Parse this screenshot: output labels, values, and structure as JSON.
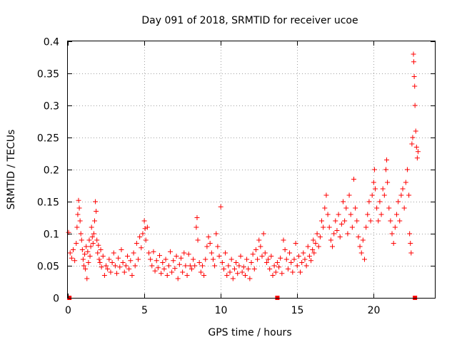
{
  "chart_data": {
    "type": "scatter",
    "title": "Day 091 of 2018, SRMTID for receiver ucoe",
    "xlabel": "GPS time / hours",
    "ylabel": "SRMTID / TECUs",
    "xlim": [
      0,
      24
    ],
    "ylim": [
      0,
      0.4
    ],
    "grid": true,
    "marker": "plus",
    "series_color": "#ff0000",
    "xticks": [
      {
        "value": 0,
        "label": "0"
      },
      {
        "value": 5,
        "label": "5"
      },
      {
        "value": 10,
        "label": "10"
      },
      {
        "value": 15,
        "label": "15"
      },
      {
        "value": 20,
        "label": "20"
      }
    ],
    "yticks": [
      {
        "value": 0,
        "label": "0"
      },
      {
        "value": 0.05,
        "label": "0.05"
      },
      {
        "value": 0.1,
        "label": "0.1"
      },
      {
        "value": 0.15,
        "label": "0.15"
      },
      {
        "value": 0.2,
        "label": "0.2"
      },
      {
        "value": 0.25,
        "label": "0.25"
      },
      {
        "value": 0.3,
        "label": "0.3"
      },
      {
        "value": 0.35,
        "label": "0.35"
      },
      {
        "value": 0.4,
        "label": "0.4"
      }
    ],
    "zero_markers_x": [
      0.1,
      13.7,
      22.7
    ],
    "series": [
      {
        "name": "SRMTID",
        "points": [
          [
            0.05,
            0.102
          ],
          [
            0.15,
            0.07
          ],
          [
            0.25,
            0.062
          ],
          [
            0.35,
            0.075
          ],
          [
            0.45,
            0.058
          ],
          [
            0.55,
            0.085
          ],
          [
            0.6,
            0.11
          ],
          [
            0.65,
            0.13
          ],
          [
            0.7,
            0.152
          ],
          [
            0.75,
            0.14
          ],
          [
            0.8,
            0.12
          ],
          [
            0.85,
            0.1
          ],
          [
            0.9,
            0.09
          ],
          [
            0.95,
            0.075
          ],
          [
            1.0,
            0.06
          ],
          [
            1.05,
            0.05
          ],
          [
            1.1,
            0.068
          ],
          [
            1.15,
            0.045
          ],
          [
            1.2,
            0.08
          ],
          [
            1.25,
            0.03
          ],
          [
            1.3,
            0.072
          ],
          [
            1.35,
            0.055
          ],
          [
            1.4,
            0.09
          ],
          [
            1.45,
            0.065
          ],
          [
            1.5,
            0.08
          ],
          [
            1.55,
            0.11
          ],
          [
            1.6,
            0.095
          ],
          [
            1.65,
            0.085
          ],
          [
            1.7,
            0.1
          ],
          [
            1.75,
            0.12
          ],
          [
            1.8,
            0.15
          ],
          [
            1.85,
            0.135
          ],
          [
            1.9,
            0.09
          ],
          [
            1.95,
            0.07
          ],
          [
            2.0,
            0.082
          ],
          [
            2.05,
            0.06
          ],
          [
            2.1,
            0.055
          ],
          [
            2.15,
            0.075
          ],
          [
            2.2,
            0.048
          ],
          [
            2.3,
            0.065
          ],
          [
            2.4,
            0.035
          ],
          [
            2.5,
            0.05
          ],
          [
            2.6,
            0.045
          ],
          [
            2.7,
            0.06
          ],
          [
            2.8,
            0.04
          ],
          [
            2.9,
            0.055
          ],
          [
            3.0,
            0.07
          ],
          [
            3.1,
            0.05
          ],
          [
            3.2,
            0.038
          ],
          [
            3.3,
            0.062
          ],
          [
            3.4,
            0.048
          ],
          [
            3.5,
            0.075
          ],
          [
            3.6,
            0.055
          ],
          [
            3.7,
            0.04
          ],
          [
            3.8,
            0.05
          ],
          [
            3.9,
            0.065
          ],
          [
            4.0,
            0.045
          ],
          [
            4.1,
            0.058
          ],
          [
            4.2,
            0.035
          ],
          [
            4.3,
            0.07
          ],
          [
            4.4,
            0.05
          ],
          [
            4.5,
            0.085
          ],
          [
            4.6,
            0.06
          ],
          [
            4.7,
            0.095
          ],
          [
            4.8,
            0.078
          ],
          [
            4.9,
            0.1
          ],
          [
            5.0,
            0.12
          ],
          [
            5.05,
            0.108
          ],
          [
            5.1,
            0.09
          ],
          [
            5.2,
            0.11
          ],
          [
            5.3,
            0.07
          ],
          [
            5.4,
            0.06
          ],
          [
            5.5,
            0.05
          ],
          [
            5.6,
            0.072
          ],
          [
            5.7,
            0.042
          ],
          [
            5.8,
            0.058
          ],
          [
            5.9,
            0.047
          ],
          [
            6.0,
            0.066
          ],
          [
            6.1,
            0.038
          ],
          [
            6.2,
            0.055
          ],
          [
            6.3,
            0.045
          ],
          [
            6.4,
            0.06
          ],
          [
            6.5,
            0.035
          ],
          [
            6.6,
            0.05
          ],
          [
            6.7,
            0.072
          ],
          [
            6.8,
            0.04
          ],
          [
            6.9,
            0.058
          ],
          [
            7.0,
            0.046
          ],
          [
            7.1,
            0.065
          ],
          [
            7.2,
            0.03
          ],
          [
            7.3,
            0.052
          ],
          [
            7.4,
            0.062
          ],
          [
            7.5,
            0.04
          ],
          [
            7.6,
            0.07
          ],
          [
            7.7,
            0.05
          ],
          [
            7.8,
            0.035
          ],
          [
            7.9,
            0.068
          ],
          [
            8.0,
            0.05
          ],
          [
            8.1,
            0.045
          ],
          [
            8.2,
            0.06
          ],
          [
            8.3,
            0.05
          ],
          [
            8.4,
            0.11
          ],
          [
            8.45,
            0.125
          ],
          [
            8.5,
            0.09
          ],
          [
            8.6,
            0.055
          ],
          [
            8.7,
            0.04
          ],
          [
            8.8,
            0.05
          ],
          [
            8.9,
            0.035
          ],
          [
            9.0,
            0.06
          ],
          [
            9.1,
            0.08
          ],
          [
            9.2,
            0.095
          ],
          [
            9.3,
            0.085
          ],
          [
            9.4,
            0.07
          ],
          [
            9.5,
            0.06
          ],
          [
            9.6,
            0.05
          ],
          [
            9.7,
            0.1
          ],
          [
            9.8,
            0.08
          ],
          [
            9.9,
            0.065
          ],
          [
            10.0,
            0.142
          ],
          [
            10.1,
            0.055
          ],
          [
            10.2,
            0.045
          ],
          [
            10.3,
            0.07
          ],
          [
            10.4,
            0.035
          ],
          [
            10.5,
            0.05
          ],
          [
            10.6,
            0.04
          ],
          [
            10.7,
            0.06
          ],
          [
            10.8,
            0.03
          ],
          [
            10.9,
            0.045
          ],
          [
            11.0,
            0.055
          ],
          [
            11.1,
            0.038
          ],
          [
            11.2,
            0.05
          ],
          [
            11.3,
            0.065
          ],
          [
            11.4,
            0.04
          ],
          [
            11.5,
            0.048
          ],
          [
            11.6,
            0.035
          ],
          [
            11.7,
            0.06
          ],
          [
            11.8,
            0.045
          ],
          [
            11.9,
            0.03
          ],
          [
            12.0,
            0.055
          ],
          [
            12.1,
            0.068
          ],
          [
            12.2,
            0.045
          ],
          [
            12.3,
            0.075
          ],
          [
            12.4,
            0.06
          ],
          [
            12.5,
            0.09
          ],
          [
            12.6,
            0.08
          ],
          [
            12.7,
            0.065
          ],
          [
            12.8,
            0.1
          ],
          [
            12.9,
            0.07
          ],
          [
            13.0,
            0.055
          ],
          [
            13.1,
            0.06
          ],
          [
            13.2,
            0.045
          ],
          [
            13.3,
            0.065
          ],
          [
            13.4,
            0.035
          ],
          [
            13.5,
            0.05
          ],
          [
            13.6,
            0.04
          ],
          [
            13.7,
            0.055
          ],
          [
            13.8,
            0.048
          ],
          [
            13.9,
            0.062
          ],
          [
            14.0,
            0.038
          ],
          [
            14.1,
            0.09
          ],
          [
            14.2,
            0.075
          ],
          [
            14.3,
            0.06
          ],
          [
            14.4,
            0.045
          ],
          [
            14.5,
            0.07
          ],
          [
            14.6,
            0.055
          ],
          [
            14.7,
            0.04
          ],
          [
            14.8,
            0.06
          ],
          [
            14.9,
            0.085
          ],
          [
            15.0,
            0.05
          ],
          [
            15.1,
            0.065
          ],
          [
            15.2,
            0.04
          ],
          [
            15.3,
            0.055
          ],
          [
            15.4,
            0.07
          ],
          [
            15.5,
            0.06
          ],
          [
            15.6,
            0.05
          ],
          [
            15.7,
            0.08
          ],
          [
            15.8,
            0.065
          ],
          [
            15.9,
            0.058
          ],
          [
            16.0,
            0.075
          ],
          [
            16.05,
            0.09
          ],
          [
            16.1,
            0.07
          ],
          [
            16.2,
            0.085
          ],
          [
            16.3,
            0.1
          ],
          [
            16.4,
            0.08
          ],
          [
            16.5,
            0.095
          ],
          [
            16.6,
            0.12
          ],
          [
            16.7,
            0.11
          ],
          [
            16.8,
            0.14
          ],
          [
            16.9,
            0.16
          ],
          [
            17.0,
            0.13
          ],
          [
            17.1,
            0.11
          ],
          [
            17.2,
            0.09
          ],
          [
            17.3,
            0.08
          ],
          [
            17.4,
            0.1
          ],
          [
            17.5,
            0.12
          ],
          [
            17.6,
            0.105
          ],
          [
            17.7,
            0.13
          ],
          [
            17.8,
            0.095
          ],
          [
            17.9,
            0.115
          ],
          [
            18.0,
            0.15
          ],
          [
            18.1,
            0.12
          ],
          [
            18.2,
            0.14
          ],
          [
            18.3,
            0.1
          ],
          [
            18.4,
            0.16
          ],
          [
            18.5,
            0.13
          ],
          [
            18.6,
            0.11
          ],
          [
            18.7,
            0.185
          ],
          [
            18.8,
            0.14
          ],
          [
            18.9,
            0.12
          ],
          [
            19.0,
            0.095
          ],
          [
            19.1,
            0.08
          ],
          [
            19.2,
            0.07
          ],
          [
            19.3,
            0.09
          ],
          [
            19.4,
            0.06
          ],
          [
            19.5,
            0.11
          ],
          [
            19.6,
            0.13
          ],
          [
            19.7,
            0.15
          ],
          [
            19.8,
            0.12
          ],
          [
            19.9,
            0.16
          ],
          [
            20.0,
            0.18
          ],
          [
            20.05,
            0.2
          ],
          [
            20.1,
            0.17
          ],
          [
            20.2,
            0.14
          ],
          [
            20.3,
            0.12
          ],
          [
            20.4,
            0.15
          ],
          [
            20.5,
            0.13
          ],
          [
            20.6,
            0.17
          ],
          [
            20.7,
            0.16
          ],
          [
            20.8,
            0.2
          ],
          [
            20.85,
            0.215
          ],
          [
            20.9,
            0.18
          ],
          [
            21.0,
            0.14
          ],
          [
            21.1,
            0.12
          ],
          [
            21.2,
            0.1
          ],
          [
            21.3,
            0.085
          ],
          [
            21.4,
            0.11
          ],
          [
            21.5,
            0.13
          ],
          [
            21.6,
            0.15
          ],
          [
            21.7,
            0.12
          ],
          [
            21.8,
            0.16
          ],
          [
            21.9,
            0.17
          ],
          [
            22.0,
            0.14
          ],
          [
            22.1,
            0.18
          ],
          [
            22.2,
            0.2
          ],
          [
            22.3,
            0.16
          ],
          [
            22.35,
            0.1
          ],
          [
            22.4,
            0.085
          ],
          [
            22.45,
            0.07
          ],
          [
            22.5,
            0.24
          ],
          [
            22.55,
            0.25
          ],
          [
            22.6,
            0.38
          ],
          [
            22.62,
            0.368
          ],
          [
            22.65,
            0.345
          ],
          [
            22.68,
            0.33
          ],
          [
            22.7,
            0.3
          ],
          [
            22.75,
            0.26
          ],
          [
            22.8,
            0.235
          ],
          [
            22.85,
            0.218
          ],
          [
            22.9,
            0.228
          ]
        ]
      }
    ]
  }
}
